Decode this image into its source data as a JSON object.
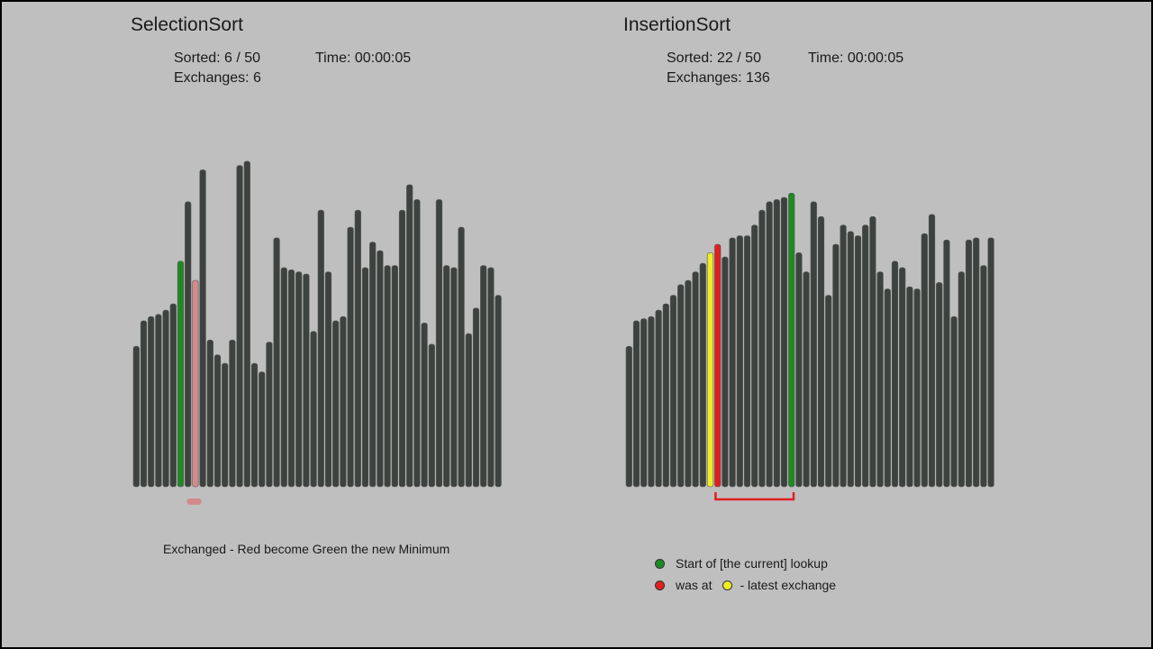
{
  "colors": {
    "background": "#bfbfbf",
    "bar": "#3d423f",
    "current_min": "#1e8a22",
    "candidate": "#d48a8a",
    "was_at": "#e02020",
    "latest_exchange": "#eeee22",
    "lookup_start": "#1e8a22",
    "bracket": "#e02020",
    "marker": "#d48a8a"
  },
  "selection": {
    "title": "SelectionSort",
    "sorted": "Sorted: 6 / 50",
    "time": "Time: 00:00:05",
    "exchanges": "Exchanges: 6",
    "caption": "Exchanged - Red become Green the new Minimum",
    "values": [
      66,
      78,
      80,
      81,
      83,
      86,
      106,
      134,
      97,
      149,
      69,
      62,
      58,
      69,
      151,
      153,
      58,
      54,
      68,
      117,
      103,
      102,
      101,
      100,
      73,
      130,
      101,
      78,
      80,
      122,
      130,
      103,
      115,
      111,
      104,
      104,
      130,
      142,
      135,
      77,
      67,
      135,
      104,
      103,
      122,
      72,
      84,
      104,
      103,
      90
    ],
    "highlights": {
      "6": "current_min",
      "8": "candidate"
    },
    "marker_index": 8
  },
  "insertion": {
    "title": "InsertionSort",
    "sorted": "Sorted: 22 / 50",
    "time": "Time: 00:00:05",
    "exchanges": "Exchanges: 136",
    "values": [
      66,
      78,
      79,
      80,
      83,
      86,
      90,
      95,
      97,
      101,
      105,
      110,
      114,
      108,
      117,
      118,
      118,
      123,
      130,
      134,
      135,
      136,
      138,
      110,
      101,
      134,
      127,
      90,
      114,
      123,
      120,
      118,
      123,
      127,
      101,
      93,
      106,
      103,
      94,
      93,
      119,
      128,
      96,
      116,
      80,
      101,
      116,
      117,
      104,
      117
    ],
    "highlights": {
      "11": "latest_exchange",
      "12": "was_at",
      "22": "lookup_start"
    },
    "bracket": {
      "from": 12,
      "to": 22
    },
    "legend": {
      "start": "Start of [the current] lookup",
      "was_at": "was at",
      "latest": "- latest exchange"
    }
  }
}
